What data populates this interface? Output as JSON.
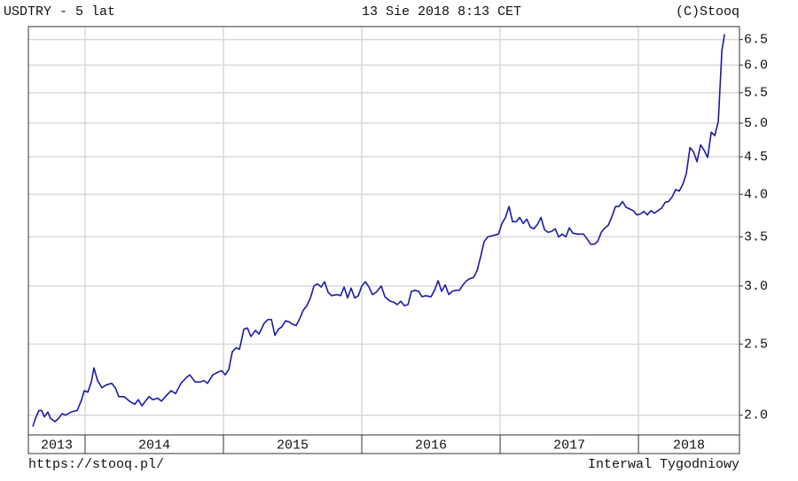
{
  "chart_data": {
    "type": "line",
    "title": "USDTRY - 5 lat",
    "subtitle": "13 Sie 2018 8:13 CET",
    "copyright": "(C)Stooq",
    "footer_left": "https://stooq.pl/",
    "footer_right": "Interwal Tygodniowy",
    "color": "#1a1aaa",
    "log_scale": true,
    "grid": true,
    "ylim": [
      1.88,
      6.77
    ],
    "yticks": [
      {
        "value": 2.0,
        "label": "2.0"
      },
      2.5,
      {
        "value": 3.0,
        "label": "3.0"
      },
      3.5,
      {
        "value": 4.0,
        "label": "4.0"
      },
      4.5,
      {
        "value": 5.0,
        "label": "5.0"
      },
      5.5,
      {
        "value": 6.0,
        "label": "6.0"
      },
      6.5
    ],
    "xlim": [
      2013.59,
      2018.73
    ],
    "xticks": [
      2014,
      2015,
      2016,
      2017,
      2018
    ],
    "year_labels": [
      2013,
      2014,
      2015,
      2016,
      2017,
      2018
    ],
    "x": [
      2013.622,
      2013.641,
      2013.667,
      2013.686,
      2013.706,
      2013.731,
      2013.75,
      2013.782,
      2013.808,
      2013.834,
      2013.859,
      2013.898,
      2013.943,
      2013.975,
      2013.994,
      2014.02,
      2014.045,
      2014.064,
      2014.09,
      2014.122,
      2014.154,
      2014.193,
      2014.218,
      2014.244,
      2014.282,
      2014.321,
      2014.359,
      2014.385,
      2014.411,
      2014.436,
      2014.462,
      2014.488,
      2014.526,
      2014.552,
      2014.59,
      2014.622,
      2014.654,
      2014.693,
      2014.731,
      2014.757,
      2014.795,
      2014.834,
      2014.859,
      2014.885,
      2014.923,
      2014.962,
      2014.988,
      2015.013,
      2015.039,
      2015.064,
      2015.09,
      2015.116,
      2015.148,
      2015.173,
      2015.199,
      2015.231,
      2015.257,
      2015.295,
      2015.321,
      2015.347,
      2015.372,
      2015.398,
      2015.423,
      2015.449,
      2015.475,
      2015.5,
      2015.526,
      2015.552,
      2015.577,
      2015.603,
      2015.629,
      2015.654,
      2015.68,
      2015.706,
      2015.731,
      2015.757,
      2015.782,
      2015.821,
      2015.847,
      2015.872,
      2015.898,
      2015.923,
      2015.949,
      2015.975,
      2016.0,
      2016.026,
      2016.052,
      2016.077,
      2016.103,
      2016.141,
      2016.167,
      2016.205,
      2016.231,
      2016.257,
      2016.282,
      2016.308,
      2016.334,
      2016.359,
      2016.385,
      2016.411,
      2016.436,
      2016.462,
      2016.5,
      2016.526,
      2016.552,
      2016.577,
      2016.603,
      2016.629,
      2016.654,
      2016.68,
      2016.706,
      2016.731,
      2016.757,
      2016.782,
      2016.808,
      2016.834,
      2016.859,
      2016.885,
      2016.911,
      2016.936,
      2016.962,
      2016.988,
      2017.013,
      2017.039,
      2017.064,
      2017.09,
      2017.116,
      2017.141,
      2017.167,
      2017.193,
      2017.218,
      2017.244,
      2017.27,
      2017.295,
      2017.321,
      2017.346,
      2017.372,
      2017.398,
      2017.423,
      2017.449,
      2017.475,
      2017.5,
      2017.526,
      2017.564,
      2017.603,
      2017.628,
      2017.654,
      2017.68,
      2017.705,
      2017.731,
      2017.757,
      2017.782,
      2017.808,
      2017.834,
      2017.859,
      2017.885,
      2017.91,
      2017.936,
      2017.962,
      2017.987,
      2018.013,
      2018.039,
      2018.064,
      2018.09,
      2018.116,
      2018.141,
      2018.167,
      2018.193,
      2018.218,
      2018.244,
      2018.269,
      2018.295,
      2018.321,
      2018.346,
      2018.372,
      2018.398,
      2018.423,
      2018.449,
      2018.475,
      2018.5,
      2018.526,
      2018.552,
      2018.577,
      2018.603,
      2018.622
    ],
    "values": [
      1.93,
      1.98,
      2.03,
      2.03,
      1.99,
      2.02,
      1.98,
      1.96,
      1.98,
      2.01,
      2.0,
      2.02,
      2.03,
      2.1,
      2.16,
      2.15,
      2.22,
      2.32,
      2.23,
      2.18,
      2.2,
      2.21,
      2.18,
      2.12,
      2.12,
      2.09,
      2.07,
      2.1,
      2.06,
      2.09,
      2.12,
      2.1,
      2.11,
      2.09,
      2.13,
      2.16,
      2.14,
      2.21,
      2.25,
      2.27,
      2.22,
      2.22,
      2.23,
      2.21,
      2.27,
      2.29,
      2.3,
      2.27,
      2.31,
      2.44,
      2.47,
      2.46,
      2.62,
      2.63,
      2.56,
      2.61,
      2.58,
      2.67,
      2.7,
      2.7,
      2.57,
      2.62,
      2.64,
      2.69,
      2.68,
      2.66,
      2.65,
      2.71,
      2.78,
      2.82,
      2.89,
      3.0,
      3.02,
      2.99,
      3.04,
      2.94,
      2.91,
      2.92,
      2.91,
      2.99,
      2.89,
      2.98,
      2.89,
      2.91,
      3.0,
      3.04,
      2.99,
      2.92,
      2.94,
      3.0,
      2.9,
      2.86,
      2.85,
      2.83,
      2.86,
      2.82,
      2.83,
      2.95,
      2.96,
      2.95,
      2.9,
      2.91,
      2.9,
      2.96,
      3.05,
      2.95,
      3.01,
      2.92,
      2.95,
      2.96,
      2.96,
      3.01,
      3.05,
      3.07,
      3.08,
      3.15,
      3.29,
      3.45,
      3.5,
      3.51,
      3.52,
      3.53,
      3.65,
      3.72,
      3.85,
      3.67,
      3.67,
      3.72,
      3.65,
      3.7,
      3.61,
      3.59,
      3.64,
      3.72,
      3.58,
      3.55,
      3.56,
      3.59,
      3.5,
      3.53,
      3.5,
      3.6,
      3.54,
      3.53,
      3.53,
      3.48,
      3.42,
      3.42,
      3.45,
      3.55,
      3.6,
      3.63,
      3.73,
      3.85,
      3.85,
      3.91,
      3.84,
      3.82,
      3.8,
      3.75,
      3.76,
      3.79,
      3.75,
      3.8,
      3.77,
      3.8,
      3.83,
      3.9,
      3.91,
      3.97,
      4.06,
      4.04,
      4.13,
      4.27,
      4.63,
      4.57,
      4.43,
      4.67,
      4.59,
      4.49,
      4.86,
      4.81,
      5.03,
      6.28,
      6.61
    ]
  }
}
